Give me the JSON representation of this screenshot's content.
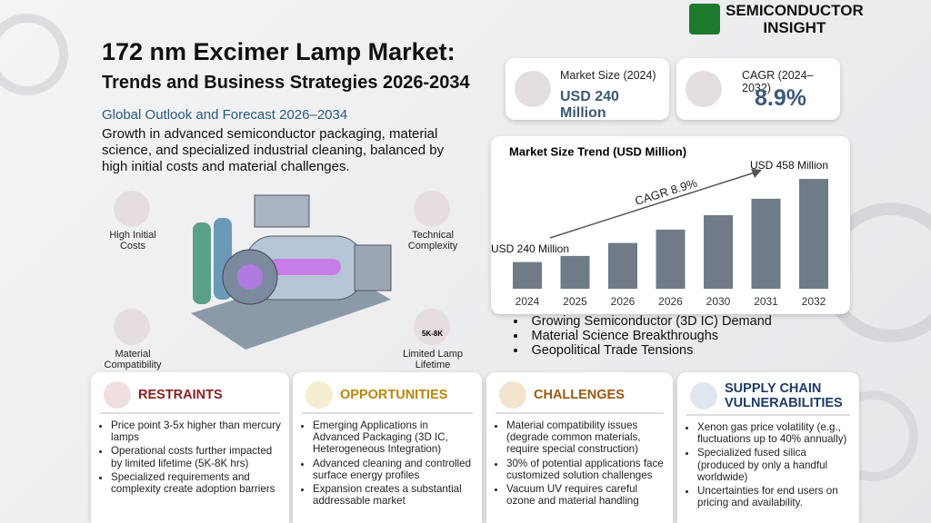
{
  "header": {
    "brand_line1": "SEMICONDUCTOR",
    "brand_line2": "INSIGHT",
    "title": "172 nm Excimer Lamp Market:",
    "subtitle": "Trends and Business Strategies 2026-2034",
    "outlook": "Global Outlook and Forecast 2026–2034",
    "summary": "Growth in advanced semiconductor packaging, material science, and specialized industrial cleaning, balanced by high initial costs and material challenges."
  },
  "kpis": [
    {
      "label": "Market Size (2024)",
      "value": "USD 240 Million"
    },
    {
      "label": "CAGR (2024–2032)",
      "value": "8.9%"
    }
  ],
  "factors": [
    "High Initial Costs",
    "Technical Complexity",
    "Material Compatibility",
    "Limited Lamp Lifetime"
  ],
  "lifetime_icon": "5K-8K",
  "chart_data": {
    "type": "bar",
    "title": "Market Size Trend (USD Million)",
    "categories": [
      "2024",
      "2025",
      "2026",
      "2026",
      "2030",
      "2031",
      "2032"
    ],
    "values": [
      240,
      256,
      290,
      325,
      363,
      406,
      458
    ],
    "value_labels": [
      "USD 240 Million",
      null,
      null,
      null,
      null,
      null,
      "USD 458 Million"
    ],
    "annotation": "CAGR 8.9%",
    "color": "#6f7b86",
    "ylim": [
      170,
      470
    ]
  },
  "drivers": [
    "Growing Semiconductor (3D IC) Demand",
    "Material Science Breakthroughs",
    "Geopolitical Trade Tensions"
  ],
  "panels": [
    {
      "title": "RESTRAINTS",
      "items": [
        "Price point 3-5x higher than mercury lamps",
        "Operational costs further impacted by limited lifetime (5K-8K hrs)",
        "Specialized requirements and complexity create adoption barriers"
      ]
    },
    {
      "title": "OPPORTUNITIES",
      "items": [
        "Emerging Applications in Advanced Packaging (3D IC, Heterogeneous Integration)",
        "Advanced cleaning and controlled surface energy profiles",
        "Expansion creates a substantial addressable market"
      ]
    },
    {
      "title": "CHALLENGES",
      "items": [
        "Material compatibility issues (degrade common materials, require special construction)",
        "30% of potential applications face customized solution challenges",
        "Vacuum UV requires careful ozone and material handling"
      ]
    },
    {
      "title": "SUPPLY CHAIN VULNERABILITIES",
      "items": [
        "Xenon gas price volatility (e.g., fluctuations up to 40% annually)",
        "Specialized fused silica (produced by only a handful worldwide)",
        "Uncertainties for end users on pricing and availability."
      ]
    }
  ]
}
